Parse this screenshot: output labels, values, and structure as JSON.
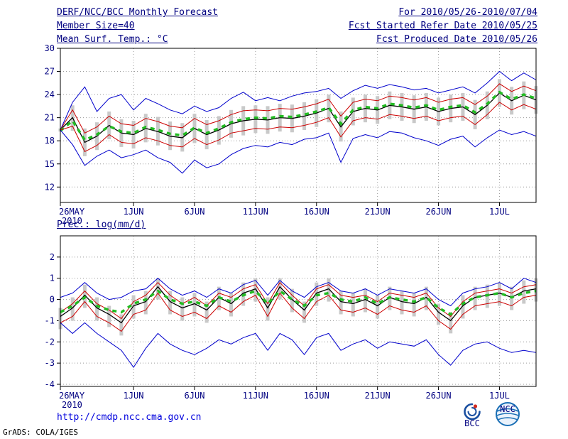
{
  "header": {
    "title": "DERF/NCC/BCC Monthly Forecast",
    "member_size": "Member Size=40",
    "period": "For 2010/05/26-2010/07/04",
    "refer_date": "Fcst Started Refer Date 2010/05/25",
    "produced_date": "Fcst Produced Date 2010/05/26"
  },
  "footer": {
    "url": "http://cmdp.ncc.cma.gov.cn",
    "credit": "GrADS: COLA/IGES",
    "logo_left": "BCC",
    "logo_right": "NCC"
  },
  "chart_data": [
    {
      "type": "line",
      "title": "Mean Surf. Temp.: °C",
      "xlabel": "",
      "ylabel": "",
      "ylim": [
        10,
        30
      ],
      "yticks": [
        12,
        15,
        18,
        21,
        24,
        27,
        30
      ],
      "grid": true,
      "n_days": 40,
      "x_start_date": "26MAY2010",
      "xticks": [
        0,
        6,
        11,
        16,
        21,
        26,
        31,
        36
      ],
      "xtick_labels": [
        "26MAY",
        "1JUN",
        "6JUN",
        "11JUN",
        "16JUN",
        "21JUN",
        "26JUN",
        "1JUL"
      ],
      "x_sub_label": "2010",
      "series": [
        {
          "name": "ensemble-max",
          "color": "#0000cc",
          "width": 1,
          "values": [
            19.4,
            23.0,
            25.0,
            21.8,
            23.5,
            24.0,
            22.0,
            23.5,
            22.8,
            22.0,
            21.5,
            22.5,
            21.8,
            22.3,
            23.5,
            24.3,
            23.2,
            23.6,
            23.2,
            23.8,
            24.2,
            24.4,
            24.8,
            23.5,
            24.5,
            25.2,
            24.8,
            25.3,
            25.0,
            24.6,
            24.8,
            24.2,
            24.6,
            25.0,
            24.2,
            25.5,
            27.0,
            25.8,
            26.8,
            25.9
          ]
        },
        {
          "name": "upper-bound",
          "color": "#cc0000",
          "width": 1,
          "values": [
            19.4,
            22.0,
            19.0,
            19.8,
            21.2,
            20.2,
            20.0,
            20.9,
            20.5,
            19.9,
            19.7,
            20.9,
            20.1,
            20.6,
            21.4,
            21.9,
            22.0,
            21.9,
            22.2,
            22.1,
            22.4,
            22.8,
            23.4,
            21.2,
            23.0,
            23.4,
            23.2,
            23.8,
            23.6,
            23.3,
            23.6,
            23.0,
            23.4,
            23.6,
            22.7,
            23.8,
            25.4,
            24.4,
            25.1,
            24.5
          ]
        },
        {
          "name": "ensemble-mean",
          "color": "#000000",
          "width": 1.3,
          "values": [
            19.4,
            21.0,
            17.8,
            18.6,
            20.0,
            19.0,
            18.8,
            19.6,
            19.2,
            18.6,
            18.4,
            19.6,
            18.8,
            19.4,
            20.2,
            20.6,
            20.8,
            20.7,
            21.0,
            20.9,
            21.2,
            21.6,
            22.2,
            19.8,
            21.8,
            22.2,
            22.0,
            22.6,
            22.4,
            22.1,
            22.4,
            21.8,
            22.2,
            22.4,
            21.4,
            22.6,
            24.2,
            23.2,
            23.9,
            23.3
          ]
        },
        {
          "name": "ensemble-median",
          "color": "#22bb22",
          "width": 3.5,
          "dash": "6,6",
          "values": [
            19.3,
            20.6,
            18.1,
            18.8,
            19.9,
            19.2,
            19.0,
            19.8,
            19.4,
            18.9,
            18.7,
            19.7,
            19.0,
            19.6,
            20.4,
            20.8,
            21.0,
            20.9,
            21.2,
            21.1,
            21.4,
            21.8,
            22.3,
            20.2,
            22.0,
            22.4,
            22.2,
            22.8,
            22.6,
            22.3,
            22.6,
            22.0,
            22.4,
            22.6,
            21.7,
            22.8,
            24.3,
            23.4,
            24.0,
            23.5
          ]
        },
        {
          "name": "lower-bound",
          "color": "#cc0000",
          "width": 1,
          "values": [
            19.4,
            19.9,
            16.6,
            17.4,
            18.8,
            17.8,
            17.6,
            18.4,
            18.0,
            17.4,
            17.2,
            18.3,
            17.5,
            18.1,
            19.0,
            19.3,
            19.6,
            19.5,
            19.8,
            19.7,
            20.0,
            20.4,
            21.0,
            18.5,
            20.6,
            21.0,
            20.8,
            21.4,
            21.2,
            20.9,
            21.2,
            20.6,
            21.0,
            21.2,
            20.1,
            21.4,
            23.0,
            22.0,
            22.7,
            22.1
          ]
        },
        {
          "name": "ensemble-min",
          "color": "#0000cc",
          "width": 1,
          "values": [
            19.4,
            17.5,
            14.8,
            16.0,
            16.8,
            15.8,
            16.2,
            16.8,
            15.8,
            15.2,
            13.8,
            15.5,
            14.5,
            15.0,
            16.2,
            17.0,
            17.4,
            17.2,
            17.8,
            17.5,
            18.2,
            18.4,
            19.0,
            15.2,
            18.3,
            18.8,
            18.4,
            19.2,
            19.0,
            18.4,
            18.0,
            17.4,
            18.2,
            18.6,
            17.2,
            18.4,
            19.4,
            18.8,
            19.2,
            18.6
          ]
        }
      ],
      "bars": {
        "name": "ensemble-spread",
        "color": "#c9c9c9",
        "upper": [
          19.6,
          22.6,
          19.6,
          20.4,
          21.8,
          20.8,
          20.6,
          21.5,
          21.1,
          20.5,
          20.3,
          21.5,
          20.7,
          21.2,
          22.0,
          22.5,
          22.6,
          22.5,
          22.8,
          22.7,
          23.0,
          23.4,
          24.0,
          21.8,
          23.6,
          24.0,
          23.8,
          24.4,
          24.2,
          23.9,
          24.2,
          23.6,
          24.0,
          24.2,
          23.3,
          24.4,
          26.0,
          25.0,
          25.7,
          25.1
        ],
        "lower": [
          19.2,
          19.3,
          16.0,
          16.8,
          18.2,
          17.2,
          17.0,
          17.8,
          17.4,
          16.8,
          16.6,
          17.7,
          16.9,
          17.5,
          18.4,
          18.7,
          19.0,
          18.9,
          19.2,
          19.1,
          19.4,
          19.8,
          20.4,
          17.9,
          20.0,
          20.4,
          20.2,
          20.8,
          20.6,
          20.3,
          20.6,
          20.0,
          20.4,
          20.6,
          19.5,
          20.8,
          22.4,
          21.4,
          22.1,
          21.5
        ]
      }
    },
    {
      "type": "line",
      "title": "Prec.: log(mm/d)",
      "xlabel": "",
      "ylabel": "",
      "ylim": [
        -4.1,
        3.0
      ],
      "yticks": [
        -4,
        -3,
        -2,
        -1,
        0,
        1,
        2
      ],
      "grid": true,
      "n_days": 40,
      "x_start_date": "26MAY2010",
      "xticks": [
        0,
        6,
        11,
        16,
        21,
        26,
        31,
        36
      ],
      "xtick_labels": [
        "26MAY",
        "1JUN",
        "6JUN",
        "11JUN",
        "16JUN",
        "21JUN",
        "26JUN",
        "1JUL"
      ],
      "x_sub_label": "2010",
      "series": [
        {
          "name": "ensemble-max",
          "color": "#0000cc",
          "width": 1,
          "values": [
            0.1,
            0.3,
            0.8,
            0.3,
            0.0,
            0.1,
            0.4,
            0.5,
            1.0,
            0.5,
            0.2,
            0.4,
            0.1,
            0.5,
            0.3,
            0.7,
            0.9,
            0.2,
            0.9,
            0.4,
            0.1,
            0.6,
            0.8,
            0.4,
            0.3,
            0.5,
            0.2,
            0.5,
            0.4,
            0.3,
            0.5,
            0.0,
            -0.3,
            0.3,
            0.5,
            0.6,
            0.8,
            0.5,
            1.0,
            0.8
          ]
        },
        {
          "name": "upper-bound",
          "color": "#cc0000",
          "width": 1,
          "values": [
            -0.6,
            -0.2,
            0.4,
            -0.2,
            -0.5,
            -0.9,
            -0.1,
            0.2,
            0.8,
            0.2,
            -0.2,
            0.1,
            -0.3,
            0.3,
            0.1,
            0.5,
            0.7,
            -0.2,
            0.8,
            0.2,
            -0.3,
            0.5,
            0.7,
            0.2,
            0.1,
            0.2,
            -0.1,
            0.3,
            0.2,
            0.1,
            0.3,
            -0.4,
            -0.8,
            -0.1,
            0.3,
            0.4,
            0.5,
            0.3,
            0.6,
            0.7
          ]
        },
        {
          "name": "ensemble-mean",
          "color": "#000000",
          "width": 1.3,
          "values": [
            -0.8,
            -0.4,
            0.2,
            -0.4,
            -0.7,
            -1.1,
            -0.3,
            -0.1,
            0.6,
            -0.1,
            -0.4,
            -0.2,
            -0.5,
            0.1,
            -0.2,
            0.3,
            0.5,
            -0.4,
            0.6,
            0.0,
            -0.5,
            0.3,
            0.5,
            -0.1,
            -0.2,
            0.0,
            -0.3,
            0.1,
            -0.1,
            -0.2,
            0.1,
            -0.6,
            -1.0,
            -0.3,
            0.1,
            0.2,
            0.3,
            0.1,
            0.4,
            0.5
          ]
        },
        {
          "name": "ensemble-median",
          "color": "#22bb22",
          "width": 3.5,
          "dash": "6,6",
          "values": [
            -0.6,
            -0.3,
            0.1,
            -0.3,
            -0.5,
            -0.6,
            -0.2,
            0.0,
            0.4,
            0.0,
            -0.2,
            -0.1,
            -0.3,
            0.1,
            -0.1,
            0.2,
            0.4,
            -0.2,
            0.4,
            0.0,
            -0.3,
            0.2,
            0.3,
            0.0,
            -0.1,
            0.1,
            -0.2,
            0.1,
            0.0,
            -0.1,
            0.1,
            -0.4,
            -0.7,
            -0.2,
            0.1,
            0.2,
            0.3,
            0.1,
            0.3,
            0.4
          ]
        },
        {
          "name": "lower-bound",
          "color": "#cc0000",
          "width": 1,
          "values": [
            -1.1,
            -0.8,
            -0.1,
            -0.8,
            -1.1,
            -1.5,
            -0.7,
            -0.5,
            0.3,
            -0.5,
            -0.8,
            -0.6,
            -0.9,
            -0.3,
            -0.6,
            -0.1,
            0.2,
            -0.8,
            0.3,
            -0.4,
            -0.9,
            -0.1,
            0.2,
            -0.5,
            -0.6,
            -0.4,
            -0.7,
            -0.3,
            -0.5,
            -0.6,
            -0.3,
            -1.0,
            -1.4,
            -0.7,
            -0.3,
            -0.2,
            -0.1,
            -0.3,
            0.1,
            0.2
          ]
        },
        {
          "name": "ensemble-min",
          "color": "#0000cc",
          "width": 1,
          "values": [
            -1.1,
            -1.6,
            -1.1,
            -1.6,
            -2.0,
            -2.4,
            -3.2,
            -2.3,
            -1.6,
            -2.1,
            -2.4,
            -2.6,
            -2.3,
            -1.9,
            -2.1,
            -1.8,
            -1.6,
            -2.4,
            -1.6,
            -1.9,
            -2.6,
            -1.8,
            -1.6,
            -2.4,
            -2.1,
            -1.9,
            -2.3,
            -2.0,
            -2.1,
            -2.2,
            -1.9,
            -2.6,
            -3.1,
            -2.4,
            -2.1,
            -2.0,
            -2.3,
            -2.5,
            -2.4,
            -2.5
          ]
        }
      ],
      "bars": {
        "name": "ensemble-spread",
        "color": "#c9c9c9",
        "upper": [
          -0.4,
          0.1,
          0.7,
          0.1,
          -0.3,
          -0.7,
          0.2,
          0.4,
          1.0,
          0.4,
          0.1,
          0.3,
          -0.1,
          0.6,
          0.3,
          0.8,
          1.0,
          0.1,
          1.0,
          0.5,
          -0.1,
          0.8,
          1.0,
          0.4,
          0.3,
          0.5,
          0.2,
          0.6,
          0.4,
          0.3,
          0.6,
          -0.2,
          -0.6,
          0.2,
          0.6,
          0.7,
          0.8,
          0.6,
          0.9,
          1.0
        ],
        "lower": [
          -1.4,
          -1.0,
          -0.4,
          -1.0,
          -1.3,
          -1.7,
          -0.9,
          -0.7,
          0.0,
          -0.7,
          -1.0,
          -0.8,
          -1.1,
          -0.5,
          -0.8,
          -0.3,
          -0.1,
          -1.0,
          0.0,
          -0.6,
          -1.1,
          -0.3,
          -0.1,
          -0.7,
          -0.8,
          -0.6,
          -0.9,
          -0.5,
          -0.7,
          -0.8,
          -0.5,
          -1.2,
          -1.6,
          -0.9,
          -0.5,
          -0.4,
          -0.3,
          -0.5,
          -0.2,
          -0.1
        ]
      }
    }
  ]
}
